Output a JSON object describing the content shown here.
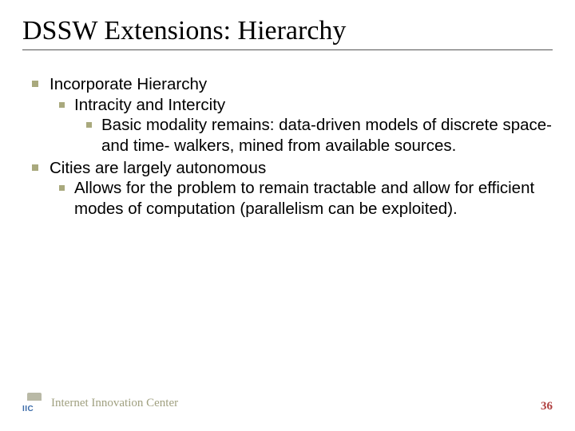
{
  "title": "DSSW Extensions: Hierarchy",
  "bullets": {
    "b1": "Incorporate Hierarchy",
    "b1_1": "Intracity and Intercity",
    "b1_1_1": "Basic modality remains: data-driven models of discrete space- and time- walkers, mined from available sources.",
    "b2": "Cities are largely autonomous",
    "b2_1": "Allows for the problem to remain tractable and allow for efficient modes of computation (parallelism can be exploited)."
  },
  "footer": {
    "org": "Internet Innovation Center",
    "logo_abbrev": "IIC",
    "page_number": "36"
  },
  "colors": {
    "bullet_square": "#a9a97d",
    "title_text": "#000000",
    "body_text": "#000000",
    "footer_text": "#a0a080",
    "pagenum_text": "#b04040",
    "underline": "#555555",
    "background": "#ffffff"
  }
}
